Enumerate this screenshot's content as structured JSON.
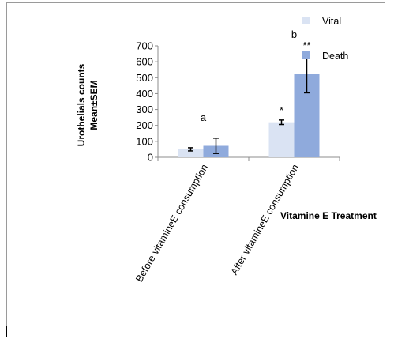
{
  "chart_data": {
    "type": "bar",
    "categories": [
      "Before vitamineE consumption",
      "After vitamineE consumption"
    ],
    "series": [
      {
        "name": "Vital",
        "color": "#dae3f3",
        "values": [
          50,
          220
        ],
        "errors": [
          10,
          14
        ],
        "annotations": [
          "",
          "*"
        ]
      },
      {
        "name": "Death",
        "color": "#8faadc",
        "values": [
          72,
          523
        ],
        "errors": [
          48,
          118
        ],
        "annotations": [
          "",
          "**"
        ]
      }
    ],
    "group_annotations": [
      "a",
      "b"
    ],
    "ylabel_line1": "Urothelials counts",
    "ylabel_line2": "Mean±SEM",
    "xlabel": "Vitamine E Treatment",
    "ylim": [
      0,
      700
    ],
    "yticks": [
      0,
      100,
      200,
      300,
      400,
      500,
      600,
      700
    ],
    "grid": false,
    "legend_position": "top-right"
  }
}
